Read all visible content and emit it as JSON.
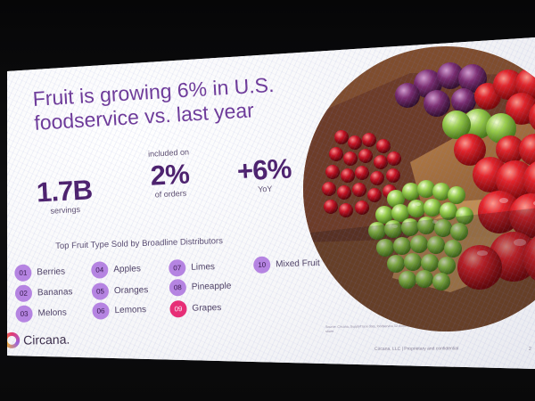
{
  "slide": {
    "headline": "Fruit is growing 6% in U.S. foodservice vs. last year",
    "metrics": [
      {
        "prefix": "",
        "value": "1.7B",
        "label": "servings"
      },
      {
        "prefix": "included on",
        "value": "2%",
        "label": "of orders"
      },
      {
        "prefix": "",
        "value": "+6%",
        "label": "YoY"
      }
    ],
    "list_title": "Top Fruit Type Sold by Broadline Distributors",
    "fruits": [
      {
        "rank": "01",
        "name": "Berries"
      },
      {
        "rank": "02",
        "name": "Bananas"
      },
      {
        "rank": "03",
        "name": "Melons"
      },
      {
        "rank": "04",
        "name": "Apples"
      },
      {
        "rank": "05",
        "name": "Oranges"
      },
      {
        "rank": "06",
        "name": "Lemons"
      },
      {
        "rank": "07",
        "name": "Limes"
      },
      {
        "rank": "08",
        "name": "Pineapple"
      },
      {
        "rank": "09",
        "name": "Grapes",
        "highlighted": true
      },
      {
        "rank": "10",
        "name": "Mixed Fruit"
      }
    ],
    "brand": "Circana.",
    "source_note": "Source: Circana, SupplyTrack data, foodservice 12 months ending 2024 Top 10 fruit by share",
    "footer_note": "Circana, LLC | Proprietary and confidential",
    "page_number": "2"
  },
  "icons": {
    "logo": "circana-logo-icon",
    "photo": "fruit-photo-icon"
  },
  "colors": {
    "accent": "#6e3a99",
    "badge": "#b784e2",
    "highlight": "#ea2c74",
    "text": "#4e4064"
  }
}
